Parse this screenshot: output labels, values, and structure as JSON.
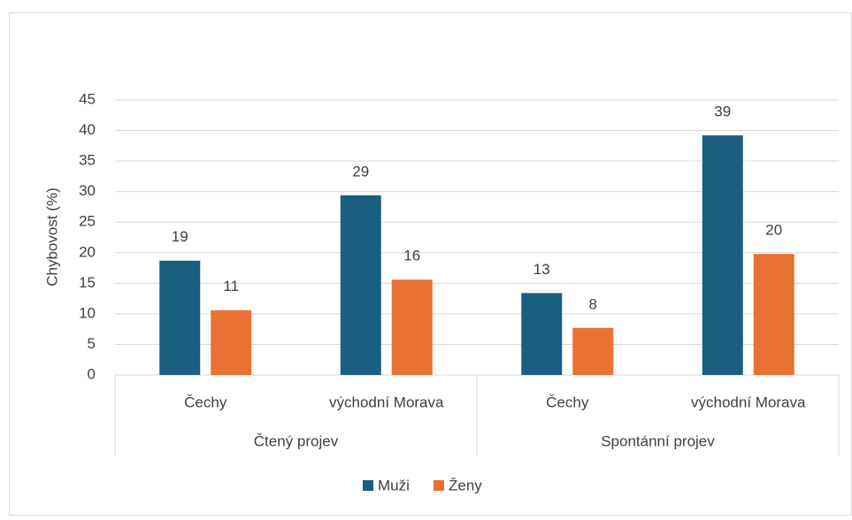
{
  "chart_data": {
    "type": "bar",
    "y_label": "Chybovost (%)",
    "categories": [
      "Čechy",
      "východní Morava",
      "Čechy",
      "východní Morava"
    ],
    "groups": [
      "Čtený projev",
      "Spontánní projev"
    ],
    "series": [
      {
        "name": "Muži",
        "color": "#1a5e80",
        "values": [
          18.7,
          29.4,
          13.4,
          39.2
        ],
        "value_labels": [
          "19",
          "29",
          "13",
          "39"
        ]
      },
      {
        "name": "Ženy",
        "color": "#e97132",
        "values": [
          10.6,
          15.6,
          7.7,
          19.8
        ],
        "value_labels": [
          "11",
          "16",
          "8",
          "20"
        ]
      }
    ],
    "ylim": [
      0,
      45
    ],
    "yticks": [
      0,
      5,
      10,
      15,
      20,
      25,
      30,
      35,
      40,
      45
    ],
    "grid": true,
    "legend": "bottom"
  }
}
